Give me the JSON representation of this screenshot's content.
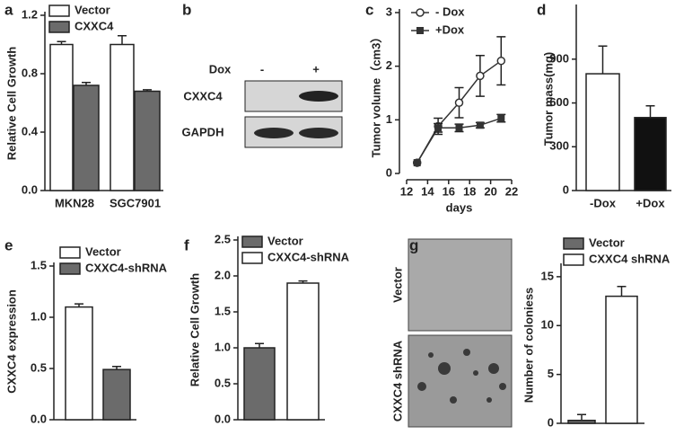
{
  "chart_data": [
    {
      "panel": "a",
      "type": "bar",
      "y_label": "Relative Cell Growth",
      "categories": [
        "MKN28",
        "SGC7901"
      ],
      "series": [
        {
          "name": "Vector",
          "color": "#ffffff",
          "values": [
            1.0,
            1.0
          ],
          "errors": [
            0.02,
            0.06
          ]
        },
        {
          "name": "CXXC4",
          "color": "#6b6b6b",
          "values": [
            0.72,
            0.68
          ],
          "errors": [
            0.02,
            0.01
          ]
        }
      ],
      "ylim": [
        0,
        1.2
      ],
      "yticks": [
        {
          "value": 0,
          "label": "0.0"
        },
        0.4,
        0.8,
        1.2
      ]
    },
    {
      "panel": "c",
      "type": "line",
      "x_label": "days",
      "y_label": "Tumor volume（cm3）",
      "x": [
        13,
        15,
        17,
        19,
        21
      ],
      "series": [
        {
          "name": "- Dox",
          "marker": "circle-open",
          "color": "#333333",
          "values": [
            0.2,
            0.88,
            1.32,
            1.82,
            2.1
          ],
          "errors": [
            0,
            0.15,
            0.28,
            0.38,
            0.45
          ]
        },
        {
          "name": "+Dox",
          "marker": "square",
          "color": "#333333",
          "values": [
            0.2,
            0.85,
            0.85,
            0.9,
            1.03
          ],
          "errors": [
            0,
            0.08,
            0.07,
            0.05,
            0.07
          ]
        }
      ],
      "xlim": [
        12,
        22
      ],
      "xticks": [
        12,
        14,
        16,
        18,
        20,
        22
      ],
      "ylim": [
        0,
        3
      ],
      "yticks": [
        0,
        1,
        2,
        3
      ]
    },
    {
      "panel": "d",
      "type": "bar",
      "y_label": "Tumor mass(mg)",
      "categories": [
        "-Dox",
        "+Dox"
      ],
      "values": [
        800,
        500
      ],
      "errors": [
        190,
        80
      ],
      "colors": [
        "#ffffff",
        "#111111"
      ],
      "ylim": [
        0,
        1250
      ],
      "yticks": [
        0,
        300,
        600,
        900
      ]
    },
    {
      "panel": "e",
      "type": "bar",
      "y_label": "CXXC4 expression",
      "categories": [
        null
      ],
      "series": [
        {
          "name": "Vector",
          "color": "#ffffff",
          "values": [
            1.1
          ],
          "errors": [
            0.03
          ]
        },
        {
          "name": "CXXC4-shRNA",
          "color": "#6b6b6b",
          "values": [
            0.49
          ],
          "errors": [
            0.03
          ]
        }
      ],
      "ylim": [
        0,
        1.5
      ],
      "yticks": [
        {
          "value": 0,
          "label": "0.0"
        },
        0.5,
        {
          "value": 1,
          "label": "1.0"
        },
        1.5
      ]
    },
    {
      "panel": "f",
      "type": "bar",
      "y_label": "Relative Cell Growth",
      "categories": [
        null
      ],
      "series": [
        {
          "name": "Vector",
          "color": "#6b6b6b",
          "values": [
            1.0
          ],
          "errors": [
            0.06
          ]
        },
        {
          "name": "CXXC4-shRNA",
          "color": "#ffffff",
          "values": [
            1.9
          ],
          "errors": [
            0.03
          ]
        }
      ],
      "ylim": [
        0,
        2.5
      ],
      "yticks": [
        {
          "value": 0,
          "label": "0.0"
        },
        0.5,
        {
          "value": 1,
          "label": "1.0"
        },
        1.5,
        {
          "value": 2,
          "label": "2.0"
        },
        2.5
      ]
    },
    {
      "panel": "g",
      "type": "bar",
      "y_label": "Number of coloniess",
      "categories": [
        null
      ],
      "image_labels": [
        "Vector",
        "CXXC4 shRNA"
      ],
      "series": [
        {
          "name": "Vector",
          "color": "#6b6b6b",
          "values": [
            0.3
          ],
          "errors": [
            0.6
          ]
        },
        {
          "name": "CXXC4 shRNA",
          "color": "#ffffff",
          "values": [
            13
          ],
          "errors": [
            1
          ]
        }
      ],
      "ylim": [
        0,
        16
      ],
      "yticks": [
        0,
        5,
        10,
        15
      ]
    }
  ],
  "blot": {
    "panel": "b",
    "treatment": "Dox",
    "lanes": [
      "-",
      "+"
    ],
    "rows": [
      "CXXC4",
      "GAPDH"
    ]
  }
}
